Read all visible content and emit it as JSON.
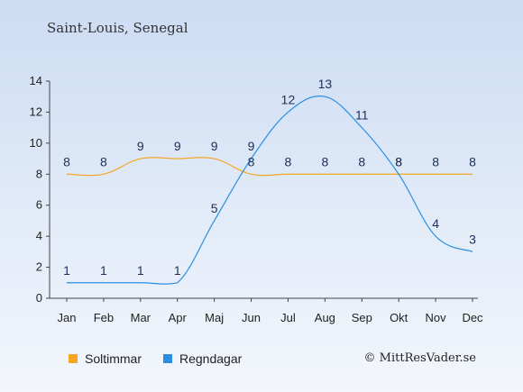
{
  "chart_data": {
    "type": "line",
    "title": "Saint-Louis, Senegal",
    "categories": [
      "Jan",
      "Feb",
      "Mar",
      "Apr",
      "Maj",
      "Jun",
      "Jul",
      "Aug",
      "Sep",
      "Okt",
      "Nov",
      "Dec"
    ],
    "series": [
      {
        "name": "Soltimmar",
        "color": "#f5a623",
        "values": [
          8,
          8,
          9,
          9,
          9,
          8,
          8,
          8,
          8,
          8,
          8,
          8
        ]
      },
      {
        "name": "Regndagar",
        "color": "#2b8fe0",
        "values": [
          1,
          1,
          1,
          1,
          5,
          9,
          12,
          13,
          11,
          8,
          4,
          3
        ]
      }
    ],
    "yticks": [
      "0",
      "2",
      "4",
      "6",
      "8",
      "10",
      "12",
      "14"
    ],
    "ylim": [
      0,
      14
    ],
    "grid": false,
    "legend": "bottom-left"
  },
  "credit": "© MittResVader.se"
}
